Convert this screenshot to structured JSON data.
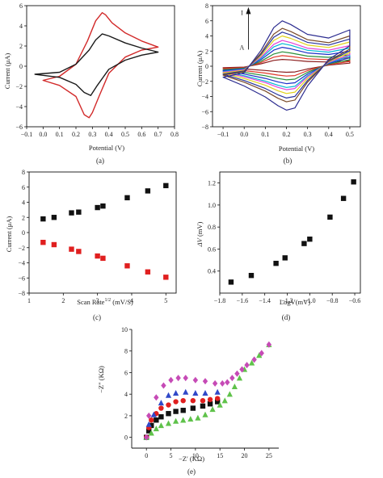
{
  "chart_data": [
    {
      "id": "a",
      "type": "line",
      "caption": "(a)",
      "xlabel": "Potential (V)",
      "ylabel": "Current (μA)",
      "xlim": [
        -0.1,
        0.8
      ],
      "ylim": [
        -6,
        6
      ],
      "xticks": [
        -0.1,
        0.0,
        0.1,
        0.2,
        0.3,
        0.4,
        0.5,
        0.6,
        0.7,
        0.8
      ],
      "xtick_labels": [
        "−0.1",
        "0.0",
        "0.1",
        "0.2",
        "0.3",
        "0.4",
        "0.5",
        "0.6",
        "0.7",
        "0.8"
      ],
      "yticks": [
        -6,
        -4,
        -2,
        0,
        2,
        4,
        6
      ],
      "ytick_labels": [
        "−6",
        "−4",
        "−2",
        "0",
        "2",
        "4",
        "6"
      ],
      "series": [
        {
          "color": "#d22a2a",
          "x": [
            0.0,
            0.1,
            0.2,
            0.27,
            0.32,
            0.36,
            0.38,
            0.42,
            0.5,
            0.6,
            0.7,
            0.7,
            0.6,
            0.5,
            0.4,
            0.34,
            0.3,
            0.28,
            0.25,
            0.2,
            0.1,
            0.0
          ],
          "y": [
            -1.4,
            -1.0,
            0.2,
            2.5,
            4.5,
            5.3,
            5.1,
            4.3,
            3.3,
            2.5,
            1.9,
            1.9,
            1.6,
            0.9,
            -0.7,
            -3.0,
            -4.6,
            -5.1,
            -4.8,
            -3.0,
            -1.9,
            -1.4
          ]
        },
        {
          "color": "#1a1a1a",
          "x": [
            -0.05,
            0.1,
            0.2,
            0.28,
            0.32,
            0.36,
            0.4,
            0.5,
            0.6,
            0.7,
            0.7,
            0.6,
            0.5,
            0.4,
            0.33,
            0.29,
            0.25,
            0.2,
            0.1,
            0.0,
            -0.05
          ],
          "y": [
            -0.8,
            -0.6,
            0.2,
            1.6,
            2.6,
            3.2,
            3.0,
            2.3,
            1.8,
            1.4,
            1.4,
            1.1,
            0.6,
            -0.3,
            -1.9,
            -2.9,
            -2.6,
            -1.8,
            -1.1,
            -0.9,
            -0.8
          ]
        }
      ]
    },
    {
      "id": "b",
      "type": "line",
      "caption": "(b)",
      "xlabel": "Potential (V)",
      "ylabel": "Current (μA)",
      "xlim": [
        -0.15,
        0.55
      ],
      "ylim": [
        -8,
        8
      ],
      "xticks": [
        -0.1,
        0.0,
        0.1,
        0.2,
        0.3,
        0.4,
        0.5
      ],
      "xtick_labels": [
        "−0.1",
        "0.0",
        "0.1",
        "0.2",
        "0.3",
        "0.4",
        "0.5"
      ],
      "yticks": [
        -8,
        -6,
        -4,
        -2,
        0,
        2,
        4,
        6,
        8
      ],
      "ytick_labels": [
        "−8",
        "−6",
        "−4",
        "−2",
        "0",
        "2",
        "4",
        "6",
        "8"
      ],
      "annotation_top": "I",
      "annotation_bottom": "A",
      "series": [
        {
          "color": "#8b1e1e",
          "peak_anodic": 0.9,
          "peak_cathodic": -0.8
        },
        {
          "color": "#e0392b",
          "peak_anodic": 1.4,
          "peak_cathodic": -1.3
        },
        {
          "color": "#2a8f3a",
          "peak_anodic": 1.9,
          "peak_cathodic": -1.8
        },
        {
          "color": "#1c2fc7",
          "peak_anodic": 2.5,
          "peak_cathodic": -2.3
        },
        {
          "color": "#00b7d4",
          "peak_anodic": 3.0,
          "peak_cathodic": -2.8
        },
        {
          "color": "#e342d6",
          "peak_anodic": 3.4,
          "peak_cathodic": -3.1
        },
        {
          "color": "#e0d21a",
          "peak_anodic": 4.0,
          "peak_cathodic": -3.6
        },
        {
          "color": "#27339c",
          "peak_anodic": 4.5,
          "peak_cathodic": -4.2
        },
        {
          "color": "#7a4b2a",
          "peak_anodic": 5.0,
          "peak_cathodic": -4.7
        },
        {
          "color": "#2b2b8f",
          "peak_anodic": 6.0,
          "peak_cathodic": -5.8
        }
      ]
    },
    {
      "id": "c",
      "type": "scatter",
      "caption": "(c)",
      "xlabel": "Scan Rate",
      "xlabel_sup": "1/2",
      "xlabel_unit": " (mV/S)",
      "ylabel": "Current (μA)",
      "xlim": [
        1,
        5.3
      ],
      "ylim": [
        -8,
        8
      ],
      "xticks": [
        1,
        2,
        3,
        4,
        5
      ],
      "xtick_labels": [
        "1",
        "2",
        "3",
        "4",
        "5"
      ],
      "yticks": [
        -8,
        -6,
        -4,
        -2,
        0,
        2,
        4,
        6,
        8
      ],
      "ytick_labels": [
        "−8",
        "−6",
        "−4",
        "−2",
        "0",
        "2",
        "4",
        "6",
        "8"
      ],
      "series": [
        {
          "color": "#111111",
          "x": [
            1.41,
            1.73,
            2.24,
            2.45,
            3.0,
            3.16,
            3.87,
            4.47,
            5.0
          ],
          "y": [
            1.8,
            2.0,
            2.6,
            2.7,
            3.3,
            3.5,
            4.6,
            5.5,
            6.2
          ]
        },
        {
          "color": "#e01f1f",
          "x": [
            1.41,
            1.73,
            2.24,
            2.45,
            3.0,
            3.16,
            3.87,
            4.47,
            5.0
          ],
          "y": [
            -1.3,
            -1.6,
            -2.2,
            -2.5,
            -3.1,
            -3.4,
            -4.4,
            -5.2,
            -5.9
          ]
        }
      ]
    },
    {
      "id": "d",
      "type": "scatter",
      "caption": "(d)",
      "xlabel": "LogV(mV)",
      "ylabel": "ΔV",
      "ylabel_unit": " (mV)",
      "xlim": [
        -1.8,
        -0.55
      ],
      "ylim": [
        0.2,
        1.3
      ],
      "xticks": [
        -1.8,
        -1.6,
        -1.4,
        -1.2,
        -1.0,
        -0.8,
        -0.6
      ],
      "xtick_labels": [
        "−1.8",
        "−1.6",
        "−1.4",
        "−1.2",
        "−1.0",
        "−0.8",
        "−0.6"
      ],
      "yticks": [
        0.4,
        0.6,
        0.8,
        1.0,
        1.2
      ],
      "ytick_labels": [
        "0.4",
        "0.6",
        "0.8",
        "1.0",
        "1.2"
      ],
      "series": [
        {
          "color": "#111111",
          "x": [
            -1.7,
            -1.52,
            -1.3,
            -1.22,
            -1.05,
            -1.0,
            -0.82,
            -0.7,
            -0.61
          ],
          "y": [
            0.3,
            0.36,
            0.47,
            0.52,
            0.65,
            0.69,
            0.89,
            1.06,
            1.21
          ]
        }
      ]
    },
    {
      "id": "e",
      "type": "scatter",
      "caption": "(e)",
      "xlabel": "−Z′ (KΩ)",
      "ylabel": "−Z″ (KΩ)",
      "xlim": [
        -3,
        27
      ],
      "ylim": [
        -1,
        10
      ],
      "xticks": [
        0,
        5,
        10,
        15,
        20,
        25
      ],
      "xtick_labels": [
        "0",
        "5",
        "10",
        "15",
        "20",
        "25"
      ],
      "yticks": [
        0,
        2,
        4,
        6,
        8,
        10
      ],
      "ytick_labels": [
        "0",
        "2",
        "4",
        "6",
        "8",
        "10"
      ],
      "series": [
        {
          "color": "#111111",
          "marker": "square",
          "x": [
            0,
            0.5,
            1,
            2,
            3,
            4.5,
            6,
            7.5,
            9.5,
            11.5,
            13,
            14.5
          ],
          "y": [
            0,
            0.6,
            1.1,
            1.6,
            1.9,
            2.2,
            2.4,
            2.5,
            2.7,
            2.9,
            3.1,
            3.3
          ]
        },
        {
          "color": "#e01f1f",
          "marker": "circle",
          "x": [
            0,
            0.5,
            1,
            2,
            3,
            4.5,
            6,
            7.5,
            9.5,
            11.5,
            13,
            14.5
          ],
          "y": [
            0,
            0.9,
            1.6,
            2.2,
            2.7,
            3.0,
            3.3,
            3.4,
            3.4,
            3.4,
            3.5,
            3.6
          ]
        },
        {
          "color": "#3048c8",
          "marker": "triangle",
          "x": [
            0,
            0.5,
            1.5,
            3,
            4.5,
            6,
            8,
            10,
            12,
            14.5
          ],
          "y": [
            0,
            1.2,
            2.1,
            3.2,
            3.9,
            4.1,
            4.2,
            4.1,
            4.1,
            4.2
          ]
        },
        {
          "color": "#5fc24a",
          "marker": "triangle",
          "x": [
            0,
            1,
            2,
            3,
            4.5,
            6,
            7.5,
            9,
            10.5,
            12,
            13.5,
            15,
            16,
            17,
            18,
            19,
            20,
            21.5,
            23,
            25
          ],
          "y": [
            0,
            0.4,
            0.8,
            1.1,
            1.3,
            1.5,
            1.6,
            1.7,
            1.8,
            2.1,
            2.6,
            3.0,
            3.4,
            4.0,
            4.7,
            5.5,
            6.3,
            6.9,
            7.6,
            8.6
          ]
        },
        {
          "color": "#c64bb6",
          "marker": "diamond",
          "x": [
            0,
            0.5,
            2,
            3.5,
            5,
            6.5,
            8,
            10,
            12,
            14,
            15.5,
            16.5,
            17.5,
            18.5,
            19.5,
            20.5,
            22,
            23.5,
            25
          ],
          "y": [
            0,
            2.0,
            3.7,
            4.8,
            5.3,
            5.5,
            5.5,
            5.3,
            5.2,
            5.0,
            5.0,
            5.1,
            5.5,
            5.9,
            6.3,
            6.7,
            7.2,
            7.8,
            8.6
          ]
        }
      ]
    }
  ]
}
